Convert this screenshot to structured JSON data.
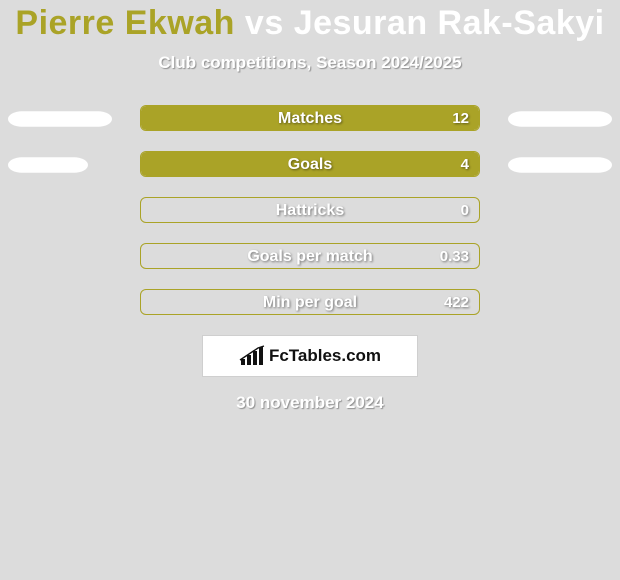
{
  "title": {
    "player1": "Pierre Ekwah",
    "vs": "vs",
    "player2": "Jesuran Rak-Sakyi",
    "player1_color": "#aaa327",
    "player2_color": "#ffffff"
  },
  "subtitle": "Club competitions, Season 2024/2025",
  "background_color": "#dcdcdc",
  "bar_track": {
    "border_color": "#aaa327",
    "border_radius": 6,
    "height": 26
  },
  "rows": [
    {
      "label": "Matches",
      "left_pill_width": 104,
      "right_pill_width": 104,
      "value_text": "12",
      "left_fill_pct": 100,
      "right_fill_pct": 0,
      "left_fill_color": "#aaa327",
      "right_fill_color": "#ffffff"
    },
    {
      "label": "Goals",
      "left_pill_width": 80,
      "right_pill_width": 104,
      "value_text": "4",
      "left_fill_pct": 100,
      "right_fill_pct": 0,
      "left_fill_color": "#aaa327",
      "right_fill_color": "#ffffff"
    },
    {
      "label": "Hattricks",
      "left_pill_width": 0,
      "right_pill_width": 0,
      "value_text": "0",
      "left_fill_pct": 0,
      "right_fill_pct": 0,
      "left_fill_color": "#aaa327",
      "right_fill_color": "#ffffff"
    },
    {
      "label": "Goals per match",
      "left_pill_width": 0,
      "right_pill_width": 0,
      "value_text": "0.33",
      "left_fill_pct": 0,
      "right_fill_pct": 0,
      "left_fill_color": "#aaa327",
      "right_fill_color": "#ffffff"
    },
    {
      "label": "Min per goal",
      "left_pill_width": 0,
      "right_pill_width": 0,
      "value_text": "422",
      "left_fill_pct": 0,
      "right_fill_pct": 0,
      "left_fill_color": "#aaa327",
      "right_fill_color": "#ffffff"
    }
  ],
  "logo": {
    "text_fc": "Fc",
    "text_rest": "Tables.com",
    "bar_color": "#111111"
  },
  "date": "30 november 2024"
}
